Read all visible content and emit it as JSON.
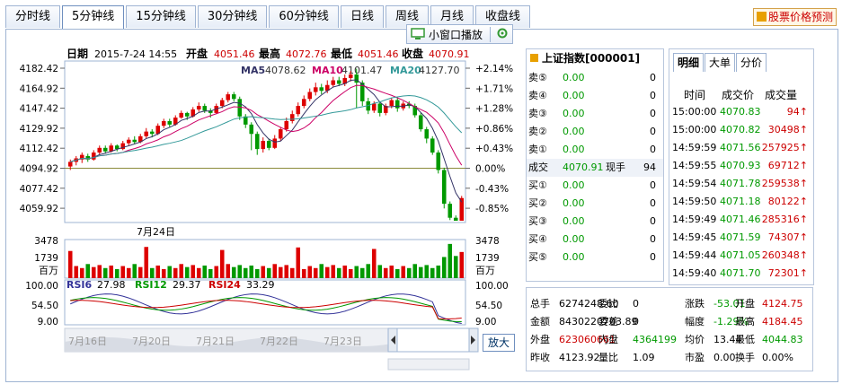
{
  "tabs": [
    "分时线",
    "5分钟线",
    "15分钟线",
    "30分钟线",
    "60分钟线",
    "日线",
    "周线",
    "月线",
    "收盘线"
  ],
  "active_tab": 1,
  "predict_button": "股票价格预测",
  "mini_window": "小窗口播放",
  "info_bar": {
    "date_label": "日期",
    "date": "2015-7-24 14:55",
    "open_label": "开盘",
    "open": "4051.46",
    "high_label": "最高",
    "high": "4072.76",
    "low_label": "最低",
    "low": "4051.46",
    "close_label": "收盘",
    "close": "4070.91"
  },
  "ma_legend": {
    "ma5": "MA5",
    "ma5_val": "4078.62",
    "ma10": "MA10",
    "ma10_val": "4101.47",
    "ma20": "MA20",
    "ma20_val": "4127.70"
  },
  "price_axis_left": [
    "4182.42",
    "4164.92",
    "4147.42",
    "4129.92",
    "4112.42",
    "4094.92",
    "4077.42",
    "4059.92"
  ],
  "price_axis_right": [
    "+2.14%",
    "+1.71%",
    "+1.28%",
    "+0.86%",
    "+0.43%",
    "0.00%",
    "-0.43%",
    "-0.85%"
  ],
  "volume_axis": [
    "3478",
    "1739",
    "百万"
  ],
  "volume_axis_right": [
    "3478",
    "1739",
    "百万"
  ],
  "volume_date_label": "7月24日",
  "rsi_legend": {
    "rsi6": "RSI6",
    "rsi6_val": "27.98",
    "rsi12": "RSI12",
    "rsi12_val": "29.37",
    "rsi24": "RSI24",
    "rsi24_val": "33.29"
  },
  "rsi_axis": [
    "100.00",
    "54.50",
    "9.00"
  ],
  "rsi_axis_right": [
    "100.00",
    "54.50",
    "9.00"
  ],
  "timeline_dates": [
    "7月16日",
    "7月20日",
    "7月21日",
    "7月22日",
    "7月23日",
    "7月24日"
  ],
  "zoom_button": "放大",
  "chart_data": {
    "type": "candlestick",
    "ylim": [
      4051.46,
      4182.42
    ],
    "prev_close": 4094.92,
    "candles": [
      [
        4098,
        4102,
        4095,
        4104
      ],
      [
        4102,
        4105,
        4099,
        4107
      ],
      [
        4104,
        4108,
        4101,
        4110
      ],
      [
        4107,
        4104,
        4102,
        4109
      ],
      [
        4104,
        4110,
        4103,
        4112
      ],
      [
        4110,
        4114,
        4108,
        4116
      ],
      [
        4114,
        4111,
        4109,
        4116
      ],
      [
        4111,
        4116,
        4110,
        4118
      ],
      [
        4116,
        4113,
        4111,
        4117
      ],
      [
        4113,
        4118,
        4112,
        4120
      ],
      [
        4118,
        4121,
        4116,
        4123
      ],
      [
        4121,
        4119,
        4117,
        4124
      ],
      [
        4119,
        4124,
        4118,
        4126
      ],
      [
        4124,
        4128,
        4122,
        4131
      ],
      [
        4128,
        4126,
        4123,
        4130
      ],
      [
        4126,
        4133,
        4125,
        4135
      ],
      [
        4133,
        4137,
        4131,
        4139
      ],
      [
        4137,
        4134,
        4132,
        4139
      ],
      [
        4134,
        4140,
        4133,
        4142
      ],
      [
        4140,
        4144,
        4139,
        4146
      ],
      [
        4144,
        4141,
        4138,
        4145
      ],
      [
        4141,
        4147,
        4140,
        4149
      ],
      [
        4147,
        4150,
        4145,
        4153
      ],
      [
        4150,
        4146,
        4144,
        4152
      ],
      [
        4146,
        4144,
        4140,
        4148
      ],
      [
        4144,
        4150,
        4143,
        4152
      ],
      [
        4150,
        4155,
        4148,
        4157
      ],
      [
        4155,
        4160,
        4153,
        4162
      ],
      [
        4160,
        4156,
        4154,
        4162
      ],
      [
        4156,
        4141,
        4138,
        4158
      ],
      [
        4141,
        4134,
        4131,
        4143
      ],
      [
        4134,
        4126,
        4112,
        4136
      ],
      [
        4126,
        4113,
        4108,
        4128
      ],
      [
        4113,
        4120,
        4110,
        4123
      ],
      [
        4120,
        4114,
        4112,
        4122
      ],
      [
        4114,
        4122,
        4113,
        4125
      ],
      [
        4122,
        4130,
        4120,
        4132
      ],
      [
        4130,
        4137,
        4128,
        4140
      ],
      [
        4137,
        4143,
        4135,
        4146
      ],
      [
        4143,
        4150,
        4141,
        4153
      ],
      [
        4150,
        4156,
        4148,
        4159
      ],
      [
        4156,
        4162,
        4154,
        4165
      ],
      [
        4162,
        4166,
        4159,
        4170
      ],
      [
        4166,
        4163,
        4160,
        4169
      ],
      [
        4163,
        4168,
        4161,
        4172
      ],
      [
        4168,
        4172,
        4166,
        4175
      ],
      [
        4172,
        4169,
        4167,
        4175
      ],
      [
        4169,
        4174,
        4167,
        4177
      ],
      [
        4174,
        4177,
        4171,
        4180
      ],
      [
        4177,
        4170,
        4148,
        4182
      ],
      [
        4170,
        4154,
        4150,
        4172
      ],
      [
        4154,
        4146,
        4143,
        4157
      ],
      [
        4146,
        4152,
        4144,
        4154
      ],
      [
        4152,
        4144,
        4141,
        4154
      ],
      [
        4144,
        4150,
        4142,
        4152
      ],
      [
        4150,
        4155,
        4148,
        4157
      ],
      [
        4155,
        4148,
        4145,
        4157
      ],
      [
        4148,
        4152,
        4146,
        4154
      ],
      [
        4152,
        4150,
        4148,
        4154
      ],
      [
        4150,
        4142,
        4140,
        4152
      ],
      [
        4142,
        4130,
        4128,
        4144
      ],
      [
        4130,
        4122,
        4118,
        4132
      ],
      [
        4122,
        4110,
        4108,
        4124
      ],
      [
        4110,
        4095,
        4092,
        4112
      ],
      [
        4095,
        4066,
        4062,
        4097
      ],
      [
        4066,
        4054,
        4052,
        4068
      ],
      [
        4054,
        4051.46,
        4051.46,
        4056
      ],
      [
        4051.46,
        4070.91,
        4051.46,
        4072.76
      ]
    ],
    "volume_ylim": [
      0,
      3478
    ],
    "volume_unit": "百万",
    "rsi_ylim": [
      9.0,
      100.0
    ]
  },
  "quote_panel": {
    "title": "上证指数[000001]",
    "sells": [
      {
        "label": "卖⑤",
        "price": "0.00",
        "vol": "0"
      },
      {
        "label": "卖④",
        "price": "0.00",
        "vol": "0"
      },
      {
        "label": "卖③",
        "price": "0.00",
        "vol": "0"
      },
      {
        "label": "卖②",
        "price": "0.00",
        "vol": "0"
      },
      {
        "label": "卖①",
        "price": "0.00",
        "vol": "0"
      }
    ],
    "deal": {
      "label": "成交",
      "price": "4070.91",
      "unit": "现手",
      "vol": "94"
    },
    "buys": [
      {
        "label": "买①",
        "price": "0.00",
        "vol": "0"
      },
      {
        "label": "买②",
        "price": "0.00",
        "vol": "0"
      },
      {
        "label": "买③",
        "price": "0.00",
        "vol": "0"
      },
      {
        "label": "买④",
        "price": "0.00",
        "vol": "0"
      },
      {
        "label": "买⑤",
        "price": "0.00",
        "vol": "0"
      }
    ]
  },
  "detail_panel": {
    "tabs": [
      "明细",
      "大单",
      "分价"
    ],
    "headers": [
      "时间",
      "成交价",
      "成交量"
    ],
    "rows": [
      {
        "time": "15:00:00",
        "price": "4070.83",
        "vol": "94↑"
      },
      {
        "time": "15:00:00",
        "price": "4070.82",
        "vol": "30498↑"
      },
      {
        "time": "14:59:59",
        "price": "4071.56",
        "vol": "257925↑"
      },
      {
        "time": "14:59:55",
        "price": "4070.93",
        "vol": "69712↑"
      },
      {
        "time": "14:59:54",
        "price": "4071.78",
        "vol": "259538↑"
      },
      {
        "time": "14:59:50",
        "price": "4071.18",
        "vol": "80122↑"
      },
      {
        "time": "14:59:49",
        "price": "4071.46",
        "vol": "285316↑"
      },
      {
        "time": "14:59:45",
        "price": "4071.59",
        "vol": "74307↑"
      },
      {
        "time": "14:59:44",
        "price": "4071.05",
        "vol": "260348↑"
      },
      {
        "time": "14:59:40",
        "price": "4071.70",
        "vol": "72301↑"
      }
    ]
  },
  "stats_panel": {
    "r1": {
      "l1": "总手",
      "v1": "6274248.60",
      "l2": "委比",
      "v2": "0",
      "l3": "涨跌",
      "v3": "-53.01",
      "l4": "开盘",
      "v4": "4124.75"
    },
    "r2": {
      "l1": "金额",
      "v1": "8430220703.89",
      "l2": "委差",
      "v2": "0",
      "l3": "幅度",
      "v3": "-1.29%",
      "l4": "最高",
      "v4": "4184.45"
    },
    "r3": {
      "l1": "外盘",
      "v1": "623060661",
      "l2": "内盘",
      "v2": "4364199",
      "l3": "均价",
      "v3": "13.44",
      "l4": "最低",
      "v4": "4044.83"
    },
    "r4": {
      "l1": "昨收",
      "v1": "4123.92",
      "l2": "量比",
      "v2": "1.09",
      "l3": "市盈",
      "v3": "0.00",
      "l4": "换手",
      "v4": "0.00%"
    }
  },
  "colors": {
    "up": "#dd0000",
    "down": "#009900",
    "ma5": "#333366",
    "ma10": "#cc0066",
    "ma20": "#339999"
  }
}
